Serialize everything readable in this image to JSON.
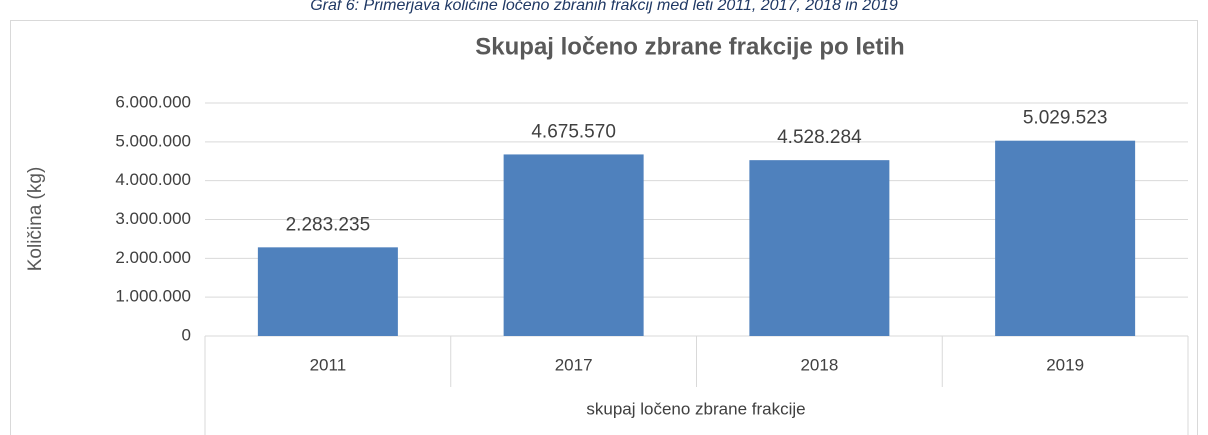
{
  "caption": "Graf 6: Primerjava količine ločeno zbranih frakcij med leti 2011, 2017, 2018 in 2019",
  "chart_data": {
    "type": "bar",
    "title": "Skupaj ločeno zbrane  frakcije po letih",
    "y_label": "Količina (kg)",
    "x_label": "skupaj ločeno zbrane frakcije",
    "categories": [
      "2011",
      "2017",
      "2018",
      "2019"
    ],
    "values": [
      2283235,
      4675570,
      4528284,
      5029523
    ],
    "value_labels": [
      "2.283.235",
      "4.675.570",
      "4.528.284",
      "5.029.523"
    ],
    "color": "#4f81bd",
    "ylim": [
      0,
      6000000
    ],
    "yticks": [
      0,
      {
        "value": 1000000,
        "label": "1.000.000"
      },
      {
        "value": 2000000,
        "label": "2.000.000"
      },
      {
        "value": 3000000,
        "label": "3.000.000"
      },
      {
        "value": 4000000,
        "label": "4.000.000"
      },
      {
        "value": 5000000,
        "label": "5.000.000"
      },
      {
        "value": 6000000,
        "label": "6.000.000"
      }
    ],
    "grid": true
  }
}
